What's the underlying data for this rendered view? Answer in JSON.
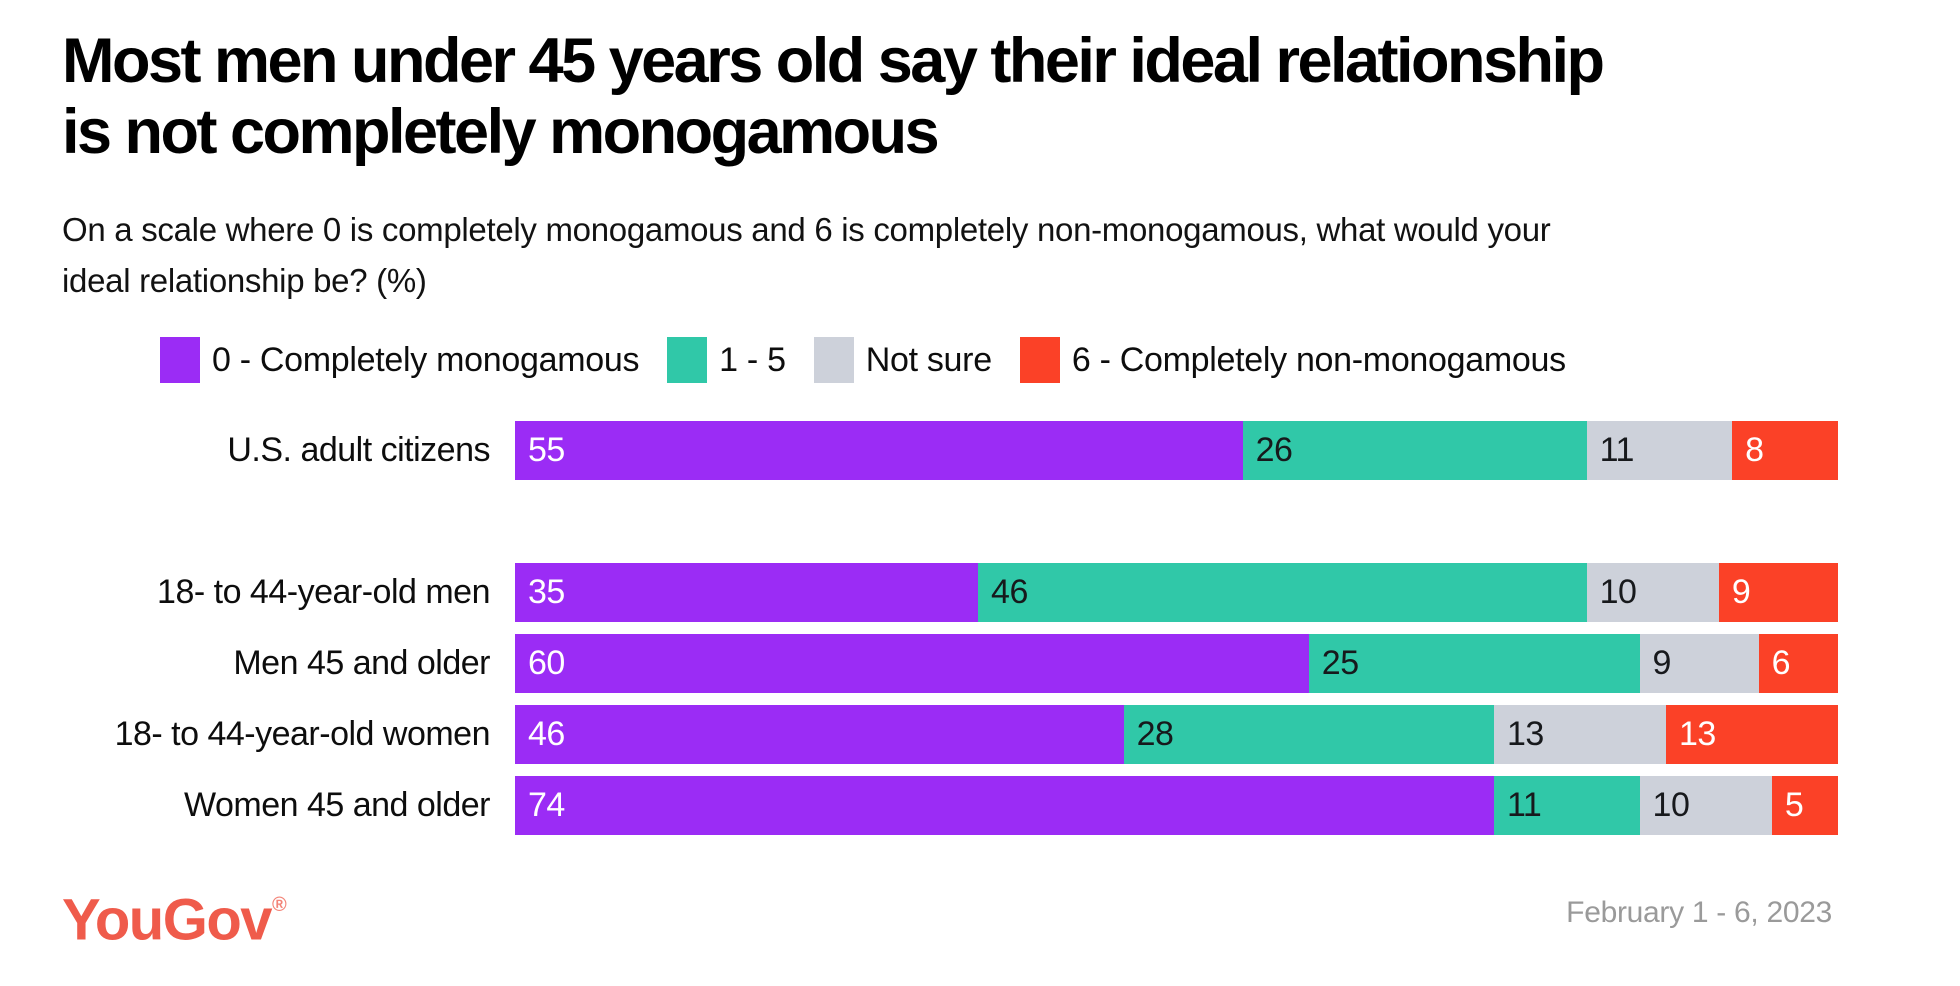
{
  "chart_data": {
    "type": "bar",
    "orientation": "horizontal",
    "stacked": true,
    "title": "Most men under 45 years old say their ideal relationship is not completely monogamous",
    "title_lines": [
      "Most men under 45 years old say their ideal relationship",
      "is not completely monogamous"
    ],
    "subtitle": "On a scale where 0 is completely monogamous and 6 is completely non-monogamous, what would your ideal relationship be? (%)",
    "subtitle_lines": [
      "On a scale where 0 is completely monogamous and 6 is completely non-monogamous, what would your",
      "ideal relationship be? (%)"
    ],
    "categories": [
      "U.S. adult citizens",
      "18- to 44-year-old men",
      "Men 45 and older",
      "18- to 44-year-old women",
      "Women 45 and older"
    ],
    "series": [
      {
        "name": "0 - Completely monogamous",
        "color": "#9B2CF5",
        "text_color": "#ffffff",
        "values": [
          55,
          35,
          60,
          46,
          74
        ]
      },
      {
        "name": "1 - 5",
        "color": "#30C8A8",
        "text_color": "#17191C",
        "values": [
          26,
          46,
          25,
          28,
          11
        ]
      },
      {
        "name": "Not sure",
        "color": "#CDD1DA",
        "text_color": "#17191C",
        "values": [
          11,
          10,
          9,
          13,
          10
        ]
      },
      {
        "name": "6 - Completely non-monogamous",
        "color": "#FB4127",
        "text_color": "#ffffff",
        "values": [
          8,
          9,
          6,
          13,
          5
        ]
      }
    ],
    "xlim": [
      0,
      100
    ],
    "unit": "%",
    "grid": false,
    "legend_position": "top",
    "value_labels": "inside-left"
  },
  "footer": {
    "logo": "YouGov",
    "registered_mark": "®",
    "date_range": "February 1 - 6, 2023"
  }
}
